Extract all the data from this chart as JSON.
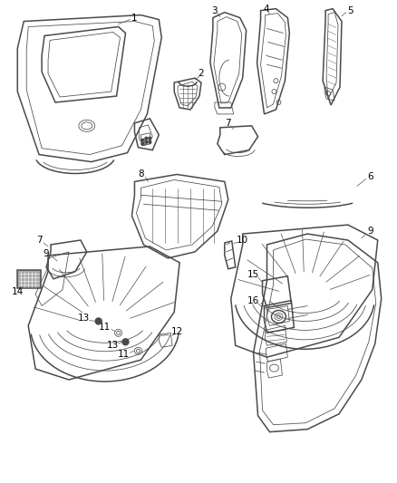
{
  "bg_color": "#ffffff",
  "line_color": "#4a4a4a",
  "label_color": "#000000",
  "fig_width": 4.38,
  "fig_height": 5.33,
  "dpi": 100,
  "lw_main": 1.1,
  "lw_thin": 0.55,
  "lw_thick": 1.5,
  "font_size": 7.5
}
